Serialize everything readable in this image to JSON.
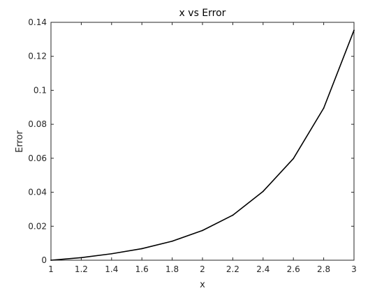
{
  "chart_data": {
    "type": "line",
    "title": "x vs Error",
    "xlabel": "x",
    "ylabel": "Error",
    "xlim": [
      1,
      3
    ],
    "ylim": [
      0,
      0.14
    ],
    "x_ticks": [
      "1",
      "1.2",
      "1.4",
      "1.6",
      "1.8",
      "2",
      "2.2",
      "2.4",
      "2.6",
      "2.8",
      "3"
    ],
    "y_ticks": [
      "0",
      "0.02",
      "0.04",
      "0.06",
      "0.08",
      "0.1",
      "0.12",
      "0.14"
    ],
    "grid": false,
    "series": [
      {
        "x": [
          1.0,
          1.2,
          1.4,
          1.6,
          1.8,
          2.0,
          2.2,
          2.4,
          2.6,
          2.8,
          3.0
        ],
        "y": [
          0.0,
          0.0015,
          0.0038,
          0.0068,
          0.0112,
          0.0175,
          0.0265,
          0.0405,
          0.0598,
          0.0895,
          0.1353
        ],
        "color": "#000000"
      }
    ]
  }
}
